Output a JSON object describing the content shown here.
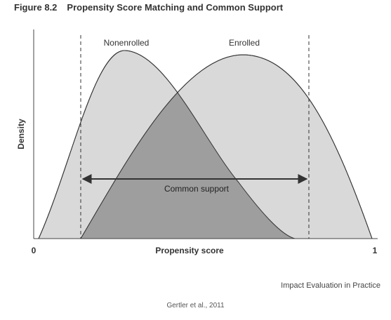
{
  "figure": {
    "number": "Figure 8.2",
    "title": "Propensity Score Matching and Common Support"
  },
  "diagram": {
    "y_axis_label": "Density",
    "x_axis_label": "Propensity score",
    "x_tick_min": "0",
    "x_tick_max": "1",
    "curve_labels": {
      "nonenrolled": "Nonenrolled",
      "enrolled": "Enrolled"
    },
    "common_support_label": "Common support",
    "colors": {
      "nonenrolled_fill": "#d2d2d2",
      "enrolled_fill": "#d2d2d2",
      "overlap_fill": "#9e9e9e",
      "outline": "#333333"
    }
  },
  "source": {
    "book": "Impact Evaluation in Practice",
    "citation": "Gertler et al., 2011"
  }
}
